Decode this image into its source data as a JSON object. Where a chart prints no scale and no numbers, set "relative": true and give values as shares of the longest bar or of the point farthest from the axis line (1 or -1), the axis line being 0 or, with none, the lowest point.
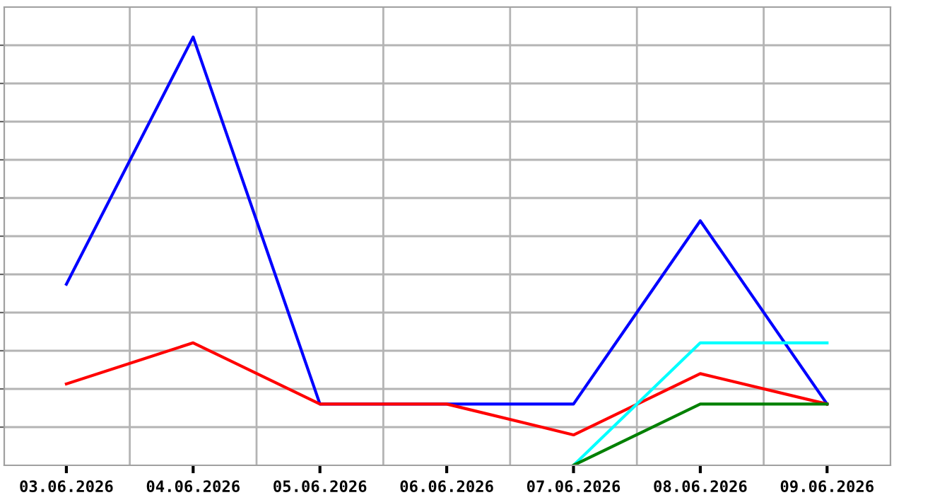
{
  "chart_data": {
    "type": "line",
    "relative": true,
    "grid": true,
    "tick_labels": "x",
    "legend": false,
    "marker": "none",
    "line_style": "solid",
    "categories": [
      "03.06.2026",
      "04.06.2026",
      "05.06.2026",
      "06.06.2026",
      "07.06.2026",
      "08.06.2026",
      "09.06.2026"
    ],
    "series": [
      {
        "color": "#0000ff",
        "values": [
          0.423,
          1,
          0.143,
          0.143,
          0.143,
          0.571,
          0.143
        ]
      },
      {
        "color": "#ff0000",
        "values": [
          0.19,
          0.286,
          0.143,
          0.143,
          0.071,
          0.214,
          0.143
        ]
      },
      {
        "color": "#00ffff",
        "values": [
          null,
          null,
          null,
          null,
          0,
          0.286,
          0.286
        ]
      },
      {
        "color": "#008000",
        "values": [
          null,
          null,
          null,
          null,
          0,
          0.143,
          0.143
        ]
      }
    ]
  }
}
